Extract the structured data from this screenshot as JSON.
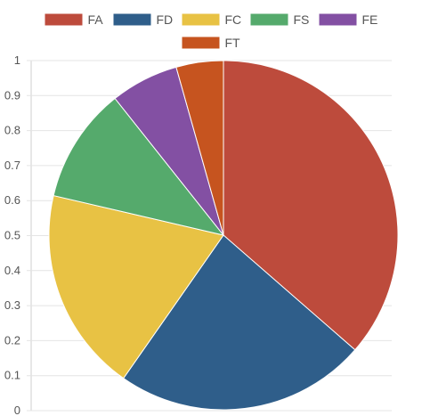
{
  "chart_data": {
    "type": "pie",
    "categories": [
      "FA",
      "FD",
      "FC",
      "FS",
      "FE",
      "FT"
    ],
    "values": [
      0.375,
      0.24,
      0.195,
      0.11,
      0.065,
      0.045
    ],
    "colors": [
      "#bd4b3c",
      "#2f5e8a",
      "#e8c244",
      "#55aa6c",
      "#8350a3",
      "#c6541f"
    ],
    "legend": [
      "FA",
      "FD",
      "FC",
      "FS",
      "FE",
      "FT"
    ],
    "legend_position": "top",
    "y_ticks": [
      "0",
      "0.1",
      "0.2",
      "0.3",
      "0.4",
      "0.5",
      "0.6",
      "0.7",
      "0.8",
      "0.9",
      "1"
    ],
    "ylim": [
      0,
      1
    ],
    "grid": true,
    "start_angle": "12 o'clock",
    "direction": "clockwise"
  }
}
